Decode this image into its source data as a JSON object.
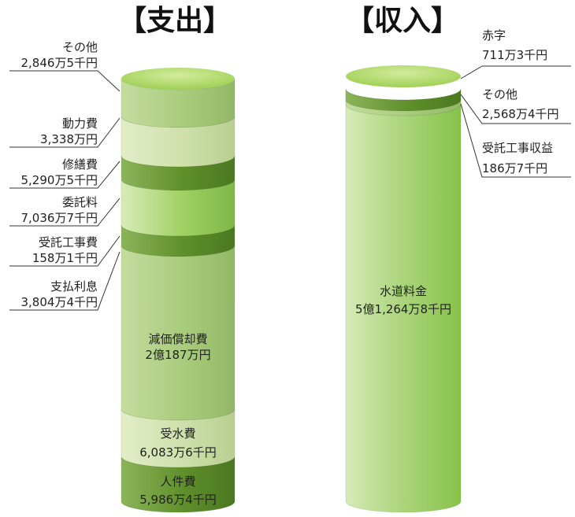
{
  "chart_data": {
    "type": "stacked-cylinder",
    "colors": {
      "light": "#cfe0ab",
      "mid": "#a9cc7c",
      "dark": "#5f8f2a",
      "bright": "#8ec54e",
      "top": "#b9dc6e"
    },
    "expenses": {
      "title": "【支出】",
      "segments": [
        {
          "name": "その他",
          "value_label": "2,846万5千円",
          "value": 2846.5,
          "tone": "mid"
        },
        {
          "name": "動力費",
          "value_label": "3,338万円",
          "value": 3338,
          "tone": "light"
        },
        {
          "name": "修繕費",
          "value_label": "5,290万5千円",
          "value": 5290.5,
          "tone": "dark"
        },
        {
          "name": "委託料",
          "value_label": "7,036万7千円",
          "value": 7036.7,
          "tone": "bright"
        },
        {
          "name": "受託工事費",
          "value_label": "158万1千円",
          "value": 158.1,
          "tone": "dark"
        },
        {
          "name": "支払利息",
          "value_label": "3,804万4千円",
          "value": 3804.4,
          "tone": "mid"
        },
        {
          "name": "減価償却費",
          "value_label": "2億187万円",
          "value": 20187,
          "tone": "light"
        },
        {
          "name": "受水費",
          "value_label": "6,083万6千円",
          "value": 6083.6,
          "tone": "dark"
        },
        {
          "name": "人件費",
          "value_label": "5,986万4千円",
          "value": 5986.4,
          "tone": "bright"
        }
      ]
    },
    "income": {
      "title": "【収入】",
      "segments": [
        {
          "name": "赤字",
          "value_label": "711万3千円",
          "value": 711.3,
          "tone": "top"
        },
        {
          "name": "その他",
          "value_label": "2,568万4千円",
          "value": 2568.4,
          "tone": "dark"
        },
        {
          "name": "受託工事収益",
          "value_label": "186万7千円",
          "value": 186.7,
          "tone": "mid"
        },
        {
          "name": "水道料金",
          "value_label": "5億1,264万8千円",
          "value": 51264.8,
          "tone": "bright"
        }
      ]
    }
  }
}
